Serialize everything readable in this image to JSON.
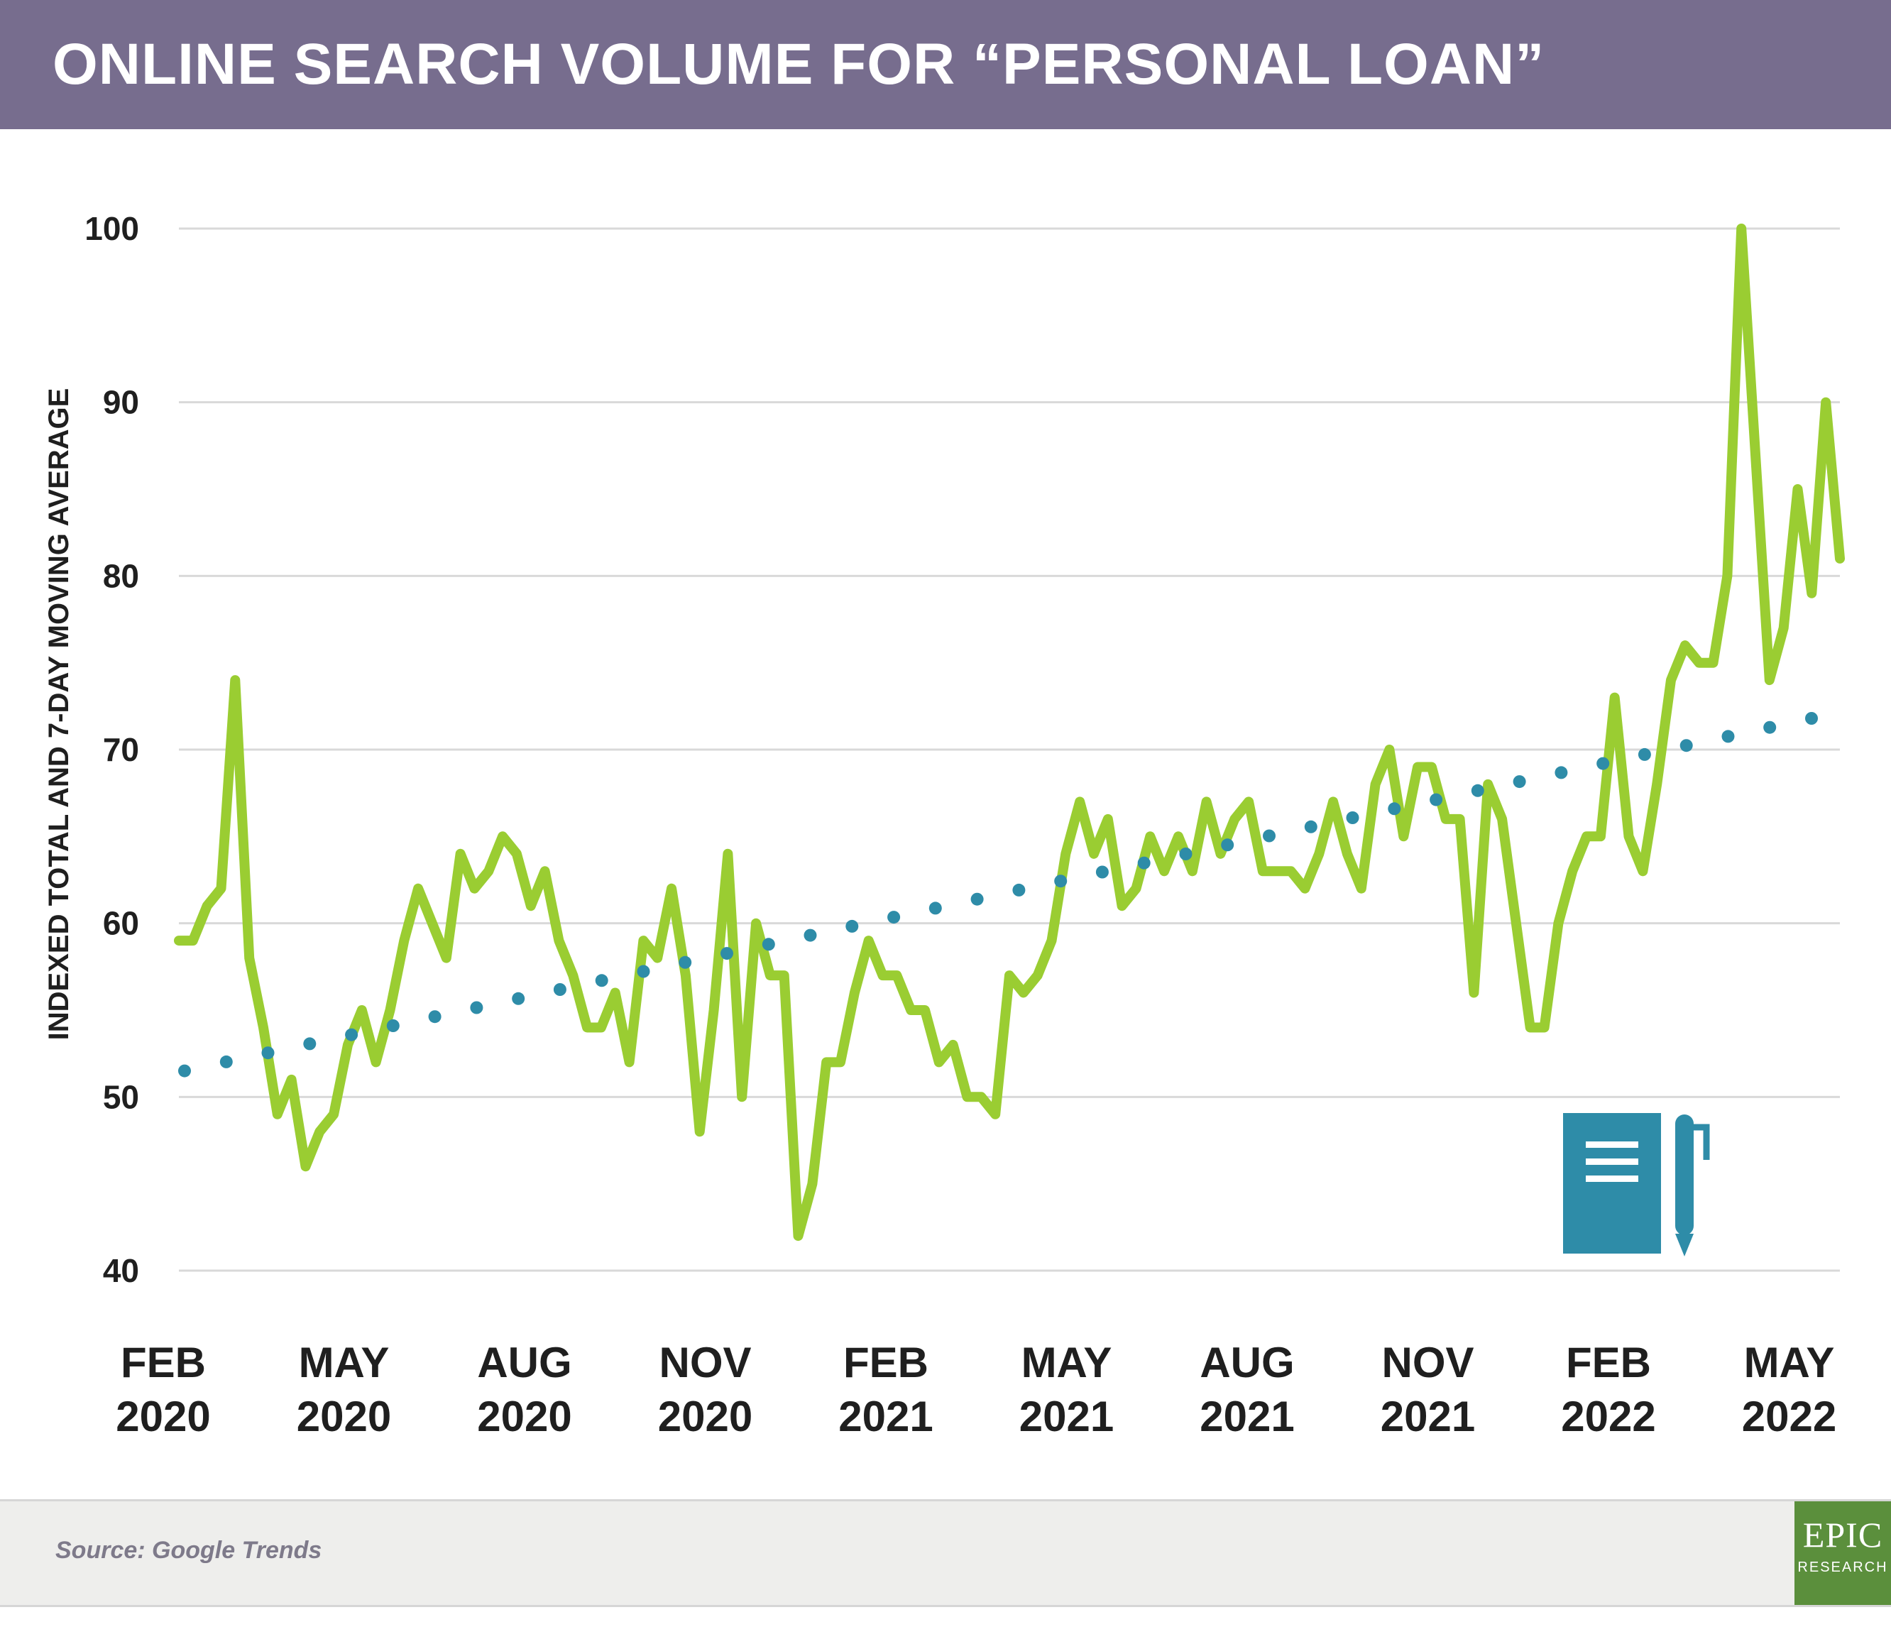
{
  "title": "ONLINE SEARCH VOLUME FOR “PERSONAL LOAN”",
  "source": "Source: Google Trends",
  "logo": {
    "word": "EPIC",
    "sub": "RESEARCH"
  },
  "colors": {
    "header": "#776d8e",
    "series": "#9acd32",
    "trend": "#2e8ca8",
    "icon": "#2e8ca8",
    "logo": "#5b8f3c"
  },
  "icon": "notebook-pen-icon",
  "chart_data": {
    "type": "line",
    "title": "ONLINE SEARCH VOLUME FOR “PERSONAL LOAN”",
    "ylabel": "INDEXED TOTAL AND 7-DAY MOVING AVERAGE",
    "xlabel": "",
    "ylim": [
      40,
      100
    ],
    "yticks": [
      40,
      50,
      60,
      70,
      80,
      90,
      100
    ],
    "grid": true,
    "x_ticks": [
      {
        "month": "FEB",
        "year": "2020"
      },
      {
        "month": "MAY",
        "year": "2020"
      },
      {
        "month": "AUG",
        "year": "2020"
      },
      {
        "month": "NOV",
        "year": "2020"
      },
      {
        "month": "FEB",
        "year": "2021"
      },
      {
        "month": "MAY",
        "year": "2021"
      },
      {
        "month": "AUG",
        "year": "2021"
      },
      {
        "month": "NOV",
        "year": "2021"
      },
      {
        "month": "FEB",
        "year": "2022"
      },
      {
        "month": "MAY",
        "year": "2022"
      }
    ],
    "series": [
      {
        "style": "solid",
        "values": [
          59,
          59,
          61,
          62,
          74,
          58,
          54,
          49,
          51,
          46,
          48,
          49,
          53,
          55,
          52,
          55,
          59,
          62,
          60,
          58,
          64,
          62,
          63,
          65,
          64,
          61,
          63,
          59,
          57,
          54,
          54,
          56,
          52,
          59,
          58,
          62,
          57,
          48,
          55,
          64,
          50,
          60,
          57,
          57,
          42,
          45,
          52,
          52,
          56,
          59,
          57,
          57,
          55,
          55,
          52,
          53,
          50,
          50,
          49,
          57,
          56,
          57,
          59,
          64,
          67,
          64,
          66,
          61,
          62,
          65,
          63,
          65,
          63,
          67,
          64,
          66,
          67,
          63,
          63,
          63,
          62,
          64,
          67,
          64,
          62,
          68,
          70,
          65,
          69,
          69,
          66,
          66,
          56,
          68,
          66,
          60,
          54,
          54,
          60,
          63,
          65,
          65,
          73,
          65,
          63,
          68,
          74,
          76,
          75,
          75,
          80,
          100,
          87,
          74,
          77,
          85,
          79,
          90,
          81
        ]
      },
      {
        "style": "dotted",
        "start": 51.5,
        "end": 71.8
      }
    ]
  }
}
